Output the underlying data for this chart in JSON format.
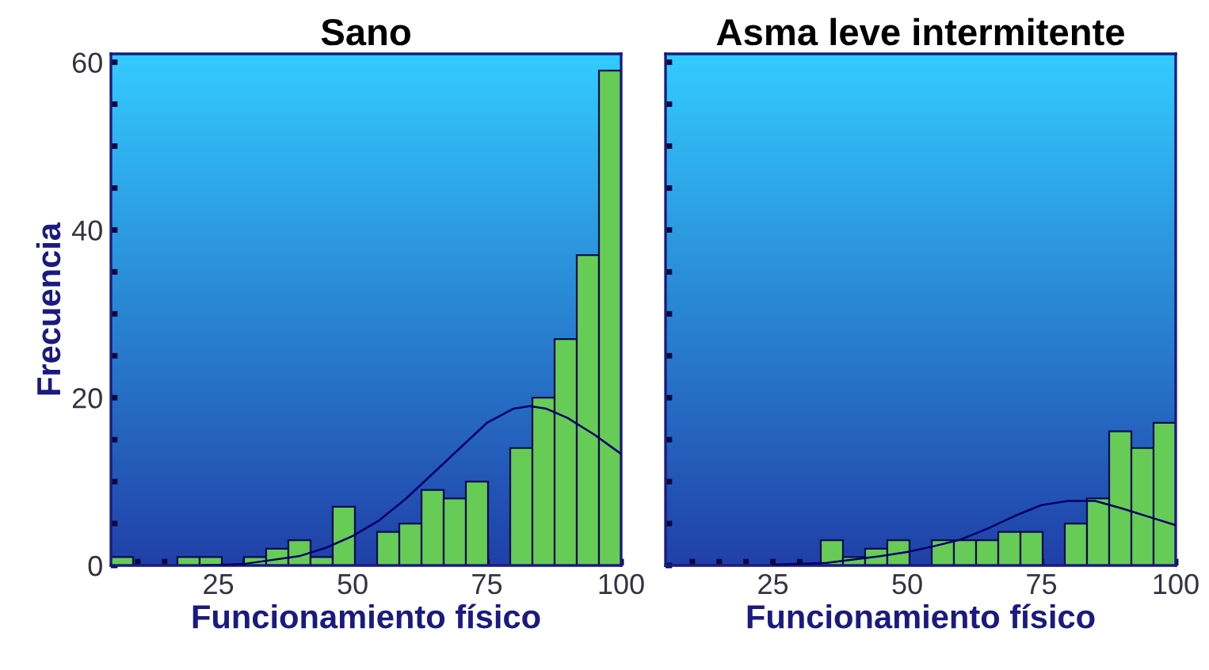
{
  "chart_data": [
    {
      "type": "histogram",
      "title": "Sano",
      "xlabel": "Funcionamiento físico",
      "ylabel": "Frecuencia",
      "color": "#66cc55",
      "bins": [
        5,
        9.13,
        13.26,
        17.39,
        21.52,
        25.65,
        29.78,
        33.91,
        38.04,
        42.17,
        46.3,
        50.43,
        54.57,
        58.7,
        62.83,
        66.96,
        71.09,
        75.22,
        79.35,
        83.48,
        87.61,
        91.74,
        95.87,
        100
      ],
      "values": [
        1,
        0,
        0,
        1,
        1,
        0,
        1,
        2,
        3,
        1,
        7,
        0,
        4,
        5,
        9,
        8,
        10,
        0,
        14,
        20,
        27,
        37,
        59
      ],
      "series": [
        {
          "type": "line",
          "color": "#000066",
          "x": [
            22,
            30,
            40,
            45,
            50,
            55,
            60,
            65,
            70,
            75,
            80,
            83,
            86,
            90,
            95,
            100
          ],
          "values": [
            0,
            0.2,
            1.1,
            2.1,
            3.5,
            5.4,
            8,
            11,
            14,
            17,
            18.7,
            19,
            18.7,
            17.6,
            15.6,
            13.3
          ]
        }
      ],
      "xlim": [
        5,
        100
      ],
      "ylim": [
        0,
        61
      ],
      "xticks": [
        {
          "value": 10,
          "label": null
        },
        {
          "value": 15,
          "label": null
        },
        {
          "value": 20,
          "label": null
        },
        25,
        {
          "value": 30,
          "label": null
        },
        {
          "value": 35,
          "label": null
        },
        {
          "value": 40,
          "label": null
        },
        {
          "value": 45,
          "label": null
        },
        50,
        {
          "value": 55,
          "label": null
        },
        {
          "value": 60,
          "label": null
        },
        {
          "value": 65,
          "label": null
        },
        {
          "value": 70,
          "label": null
        },
        75,
        {
          "value": 80,
          "label": null
        },
        {
          "value": 85,
          "label": null
        },
        {
          "value": 90,
          "label": null
        },
        {
          "value": 95,
          "label": null
        },
        100
      ],
      "yticks": [
        0,
        {
          "value": 5,
          "label": null
        },
        {
          "value": 10,
          "label": null
        },
        {
          "value": 15,
          "label": null
        },
        20,
        {
          "value": 25,
          "label": null
        },
        {
          "value": 30,
          "label": null
        },
        {
          "value": 35,
          "label": null
        },
        40,
        {
          "value": 45,
          "label": null
        },
        {
          "value": 50,
          "label": null
        },
        {
          "value": 55,
          "label": null
        },
        60
      ]
    },
    {
      "type": "histogram",
      "title": "Asma leve intermitente",
      "xlabel": "Funcionamiento físico",
      "color": "#66cc55",
      "bins": [
        5,
        9.13,
        13.26,
        17.39,
        21.52,
        25.65,
        29.78,
        33.91,
        38.04,
        42.17,
        46.3,
        50.43,
        54.57,
        58.7,
        62.83,
        66.96,
        71.09,
        75.22,
        79.35,
        83.48,
        87.61,
        91.74,
        95.87,
        100
      ],
      "values": [
        0,
        0,
        0,
        0,
        0,
        0,
        0,
        3,
        1,
        2,
        3,
        0,
        3,
        3,
        3,
        4,
        4,
        0,
        5,
        8,
        16,
        14,
        17
      ],
      "series": [
        {
          "type": "line",
          "color": "#000066",
          "x": [
            25,
            35,
            40,
            45,
            50,
            55,
            60,
            65,
            70,
            75,
            80,
            85,
            90,
            95,
            100
          ],
          "values": [
            0.1,
            0.3,
            0.7,
            1.1,
            1.6,
            2.3,
            3.1,
            4.4,
            5.9,
            7.2,
            7.7,
            7.7,
            6.8,
            5.8,
            4.8
          ]
        }
      ],
      "xlim": [
        5,
        100
      ],
      "ylim": [
        0,
        61
      ],
      "tick_labels": "x",
      "xticks": [
        {
          "value": 10,
          "label": null
        },
        {
          "value": 15,
          "label": null
        },
        {
          "value": 20,
          "label": null
        },
        25,
        {
          "value": 30,
          "label": null
        },
        {
          "value": 35,
          "label": null
        },
        {
          "value": 40,
          "label": null
        },
        {
          "value": 45,
          "label": null
        },
        50,
        {
          "value": 55,
          "label": null
        },
        {
          "value": 60,
          "label": null
        },
        {
          "value": 65,
          "label": null
        },
        {
          "value": 70,
          "label": null
        },
        75,
        {
          "value": 80,
          "label": null
        },
        {
          "value": 85,
          "label": null
        },
        {
          "value": 90,
          "label": null
        },
        {
          "value": 95,
          "label": null
        },
        100
      ],
      "yticks": [
        0,
        {
          "value": 5,
          "label": null
        },
        {
          "value": 10,
          "label": null
        },
        {
          "value": 15,
          "label": null
        },
        20,
        {
          "value": 25,
          "label": null
        },
        {
          "value": 30,
          "label": null
        },
        {
          "value": 35,
          "label": null
        },
        40,
        {
          "value": 45,
          "label": null
        },
        {
          "value": 50,
          "label": null
        },
        {
          "value": 55,
          "label": null
        },
        60
      ]
    }
  ]
}
